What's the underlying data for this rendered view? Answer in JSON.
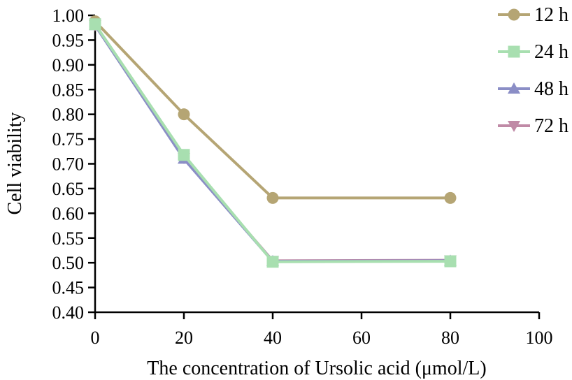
{
  "chart_data": {
    "type": "line",
    "xlabel": "The concentration of Ursolic acid (μmol/L)",
    "ylabel": "Cell viability",
    "xlim": [
      0,
      100
    ],
    "ylim": [
      0.4,
      1.0
    ],
    "x_ticks": [
      "0",
      "20",
      "40",
      "60",
      "80",
      "100"
    ],
    "y_ticks": [
      "0.40",
      "0.45",
      "0.50",
      "0.55",
      "0.60",
      "0.65",
      "0.70",
      "0.75",
      "0.80",
      "0.85",
      "0.90",
      "0.95",
      "1.00"
    ],
    "grid": false,
    "legend_position": "right",
    "x": [
      0,
      20,
      40,
      80
    ],
    "series": [
      {
        "name": "12 h",
        "values": [
          0.988,
          0.8,
          0.631,
          0.631
        ],
        "color": "#b5a574",
        "marker": "circle"
      },
      {
        "name": "72 h",
        "values": [
          0.98,
          0.712,
          0.504,
          0.505
        ],
        "color": "#c08aa6",
        "marker": "triangle-down"
      },
      {
        "name": "48 h",
        "values": [
          0.98,
          0.71,
          0.503,
          0.504
        ],
        "color": "#8b8ec6",
        "marker": "triangle-up"
      },
      {
        "name": "24 h",
        "values": [
          0.982,
          0.718,
          0.502,
          0.503
        ],
        "color": "#a8dfb0",
        "marker": "square"
      }
    ],
    "legend_order": [
      "12 h",
      "24 h",
      "48 h",
      "72 h"
    ]
  }
}
